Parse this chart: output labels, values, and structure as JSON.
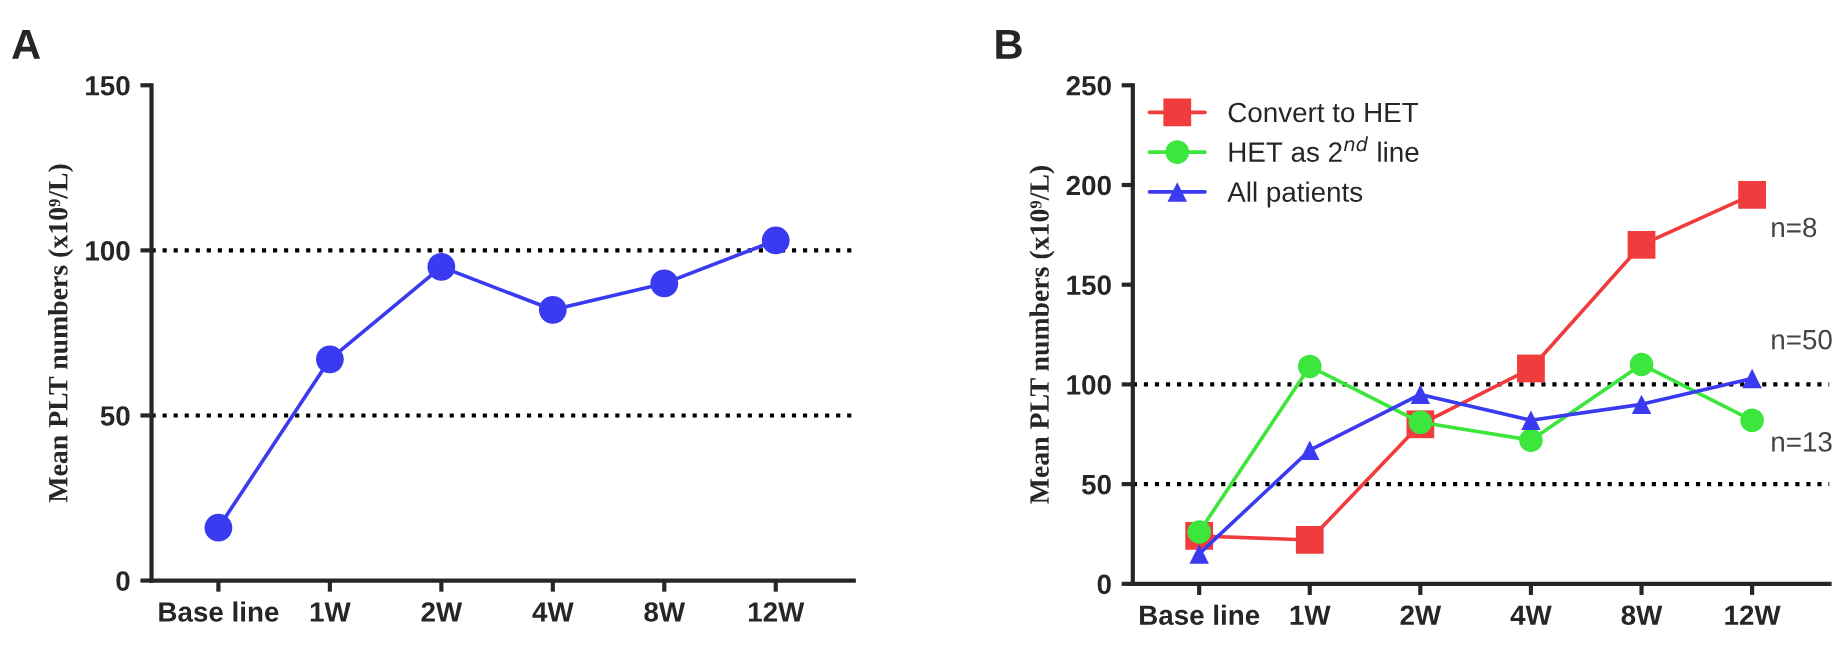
{
  "chart_data": [
    {
      "type": "line",
      "title": "A",
      "ylabel": "Mean PLT numbers (x10⁹/L)",
      "categories": [
        "Base line",
        "1W",
        "2W",
        "4W",
        "8W",
        "12W"
      ],
      "series": [
        {
          "color": "#3a3af0",
          "values": [
            16,
            67,
            95,
            82,
            90,
            103
          ],
          "marker": "circle"
        }
      ],
      "ylim": [
        0,
        150
      ],
      "yticks": [
        0,
        50,
        100,
        150
      ],
      "grid": false,
      "legend": false,
      "ref_lines": [
        {
          "axis": "y",
          "value": 50,
          "color": "#000000",
          "line_style": "dotted"
        },
        {
          "axis": "y",
          "value": 100,
          "color": "#000000",
          "line_style": "dotted"
        }
      ]
    },
    {
      "type": "line",
      "title": "B",
      "ylabel": "Mean PLT numbers (x10⁹/L)",
      "categories": [
        "Base line",
        "1W",
        "2W",
        "4W",
        "8W",
        "12W"
      ],
      "series": [
        {
          "name": "Convert to HET",
          "color": "#f03c3c",
          "values": [
            24,
            22,
            80,
            108,
            170,
            195
          ],
          "marker": "square"
        },
        {
          "name": "HET as 2$^{nd}$ line",
          "color": "#3ce63c",
          "values": [
            26,
            109,
            81,
            72,
            110,
            82
          ],
          "marker": "circle"
        },
        {
          "name": "All patients",
          "color": "#3a3af0",
          "values": [
            15,
            67,
            95,
            82,
            90,
            103
          ],
          "marker": "triangle"
        }
      ],
      "ylim": [
        0,
        250
      ],
      "yticks": [
        0,
        50,
        100,
        150,
        200,
        250
      ],
      "grid": false,
      "legend": "top left",
      "ref_lines": [
        {
          "axis": "y",
          "value": 50,
          "color": "#000000",
          "line_style": "dotted"
        },
        {
          "axis": "y",
          "value": 100,
          "color": "#000000",
          "line_style": "dotted"
        }
      ],
      "annotations": [
        "n=8",
        "n=50",
        "n=13"
      ]
    }
  ]
}
